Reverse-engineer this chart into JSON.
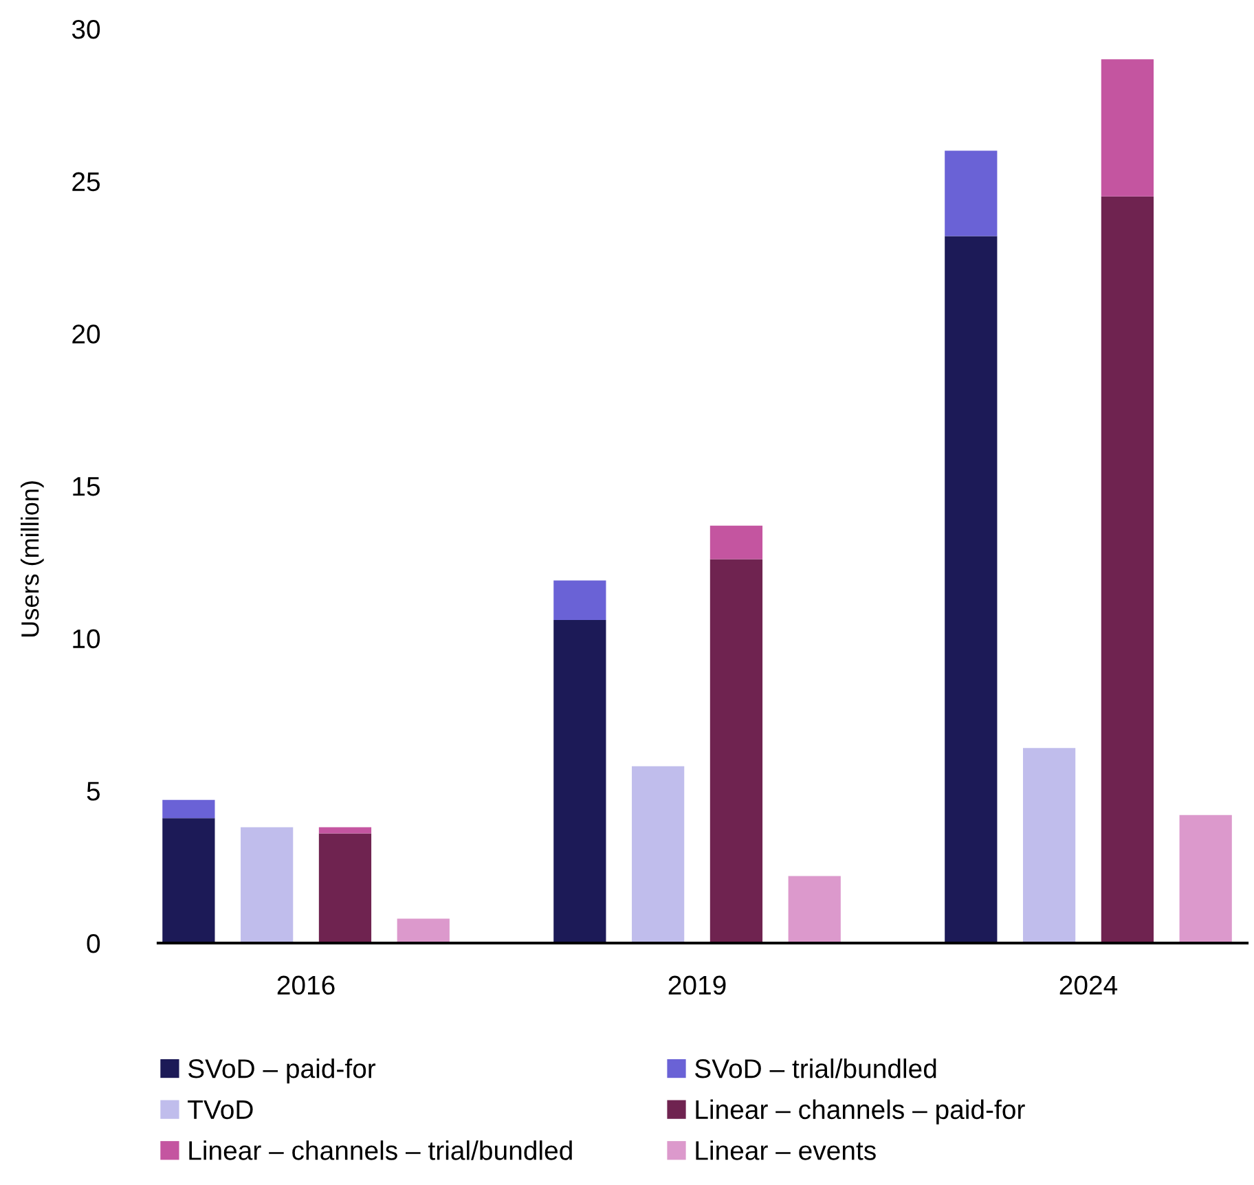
{
  "chart_data": {
    "type": "bar",
    "ylabel": "Users (million)",
    "categories": [
      null,
      null,
      null,
      null,
      null,
      null,
      null,
      null,
      null,
      null,
      null,
      null,
      null,
      null
    ],
    "annotations": [
      "2016",
      "2019",
      "2024"
    ],
    "series": [
      {
        "name": "SVoD – paid-for",
        "color": "#1c1a57",
        "values": [
          4.1,
          null,
          null,
          null,
          null,
          10.6,
          null,
          null,
          null,
          null,
          23.2,
          null,
          null,
          null
        ]
      },
      {
        "name": "SVoD – trial/bundled",
        "color": "#6a62d6",
        "values": [
          0.6,
          null,
          null,
          null,
          null,
          1.3,
          null,
          null,
          null,
          null,
          2.8,
          null,
          null,
          null
        ]
      },
      {
        "name": "TVoD",
        "color": "#c0bdec",
        "values": [
          null,
          3.8,
          null,
          null,
          null,
          null,
          5.8,
          null,
          null,
          null,
          null,
          6.4,
          null,
          null
        ]
      },
      {
        "name": "Linear – channels – paid-for",
        "color": "#6f2350",
        "values": [
          null,
          null,
          3.6,
          null,
          null,
          null,
          null,
          12.6,
          null,
          null,
          null,
          null,
          24.5,
          null
        ]
      },
      {
        "name": "Linear – channels – trial/bundled",
        "color": "#c455a0",
        "values": [
          null,
          null,
          0.2,
          null,
          null,
          null,
          null,
          1.1,
          null,
          null,
          null,
          null,
          4.5,
          null
        ]
      },
      {
        "name": "Linear – events",
        "color": "#dc99cc",
        "values": [
          null,
          null,
          null,
          0.8,
          null,
          null,
          null,
          null,
          2.2,
          null,
          null,
          null,
          null,
          4.2
        ]
      }
    ],
    "stacked": true,
    "ylim": [
      0,
      30
    ],
    "yticks": [
      0,
      5,
      10,
      15,
      20,
      25,
      30
    ],
    "tick_labels": "y",
    "grid": false,
    "legend": "bottom"
  }
}
